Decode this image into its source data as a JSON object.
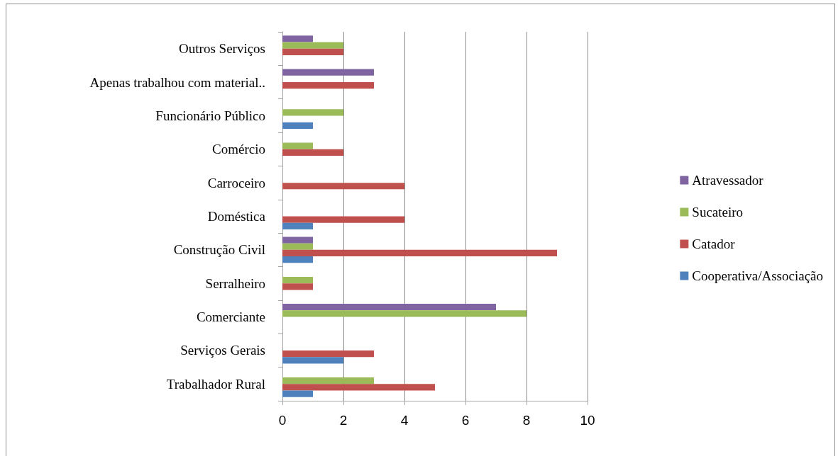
{
  "chart_data": {
    "type": "bar",
    "orientation": "horizontal",
    "categories": [
      "Outros Serviços",
      "Apenas trabalhou com material..",
      "Funcionário Público",
      "Comércio",
      "Carroceiro",
      "Doméstica",
      "Construção Civil",
      "Serralheiro",
      "Comerciante",
      "Serviços Gerais",
      "Trabalhador Rural"
    ],
    "series": [
      {
        "name": "Cooperativa/Associação",
        "color": "#4f81bd",
        "values": [
          null,
          null,
          1,
          null,
          null,
          1,
          1,
          null,
          null,
          2,
          1
        ]
      },
      {
        "name": "Catador",
        "color": "#c0504d",
        "values": [
          2,
          3,
          null,
          2,
          4,
          4,
          9,
          1,
          null,
          3,
          5
        ]
      },
      {
        "name": "Sucateiro",
        "color": "#9bbb59",
        "values": [
          2,
          null,
          2,
          1,
          null,
          null,
          1,
          1,
          8,
          null,
          3
        ]
      },
      {
        "name": "Atravessador",
        "color": "#8064a2",
        "values": [
          1,
          3,
          null,
          null,
          null,
          null,
          1,
          null,
          7,
          null,
          null
        ]
      }
    ],
    "xlim": [
      0,
      10
    ],
    "xticks": [
      0,
      2,
      4,
      6,
      8,
      10
    ],
    "grid": "x",
    "legend": "right"
  }
}
